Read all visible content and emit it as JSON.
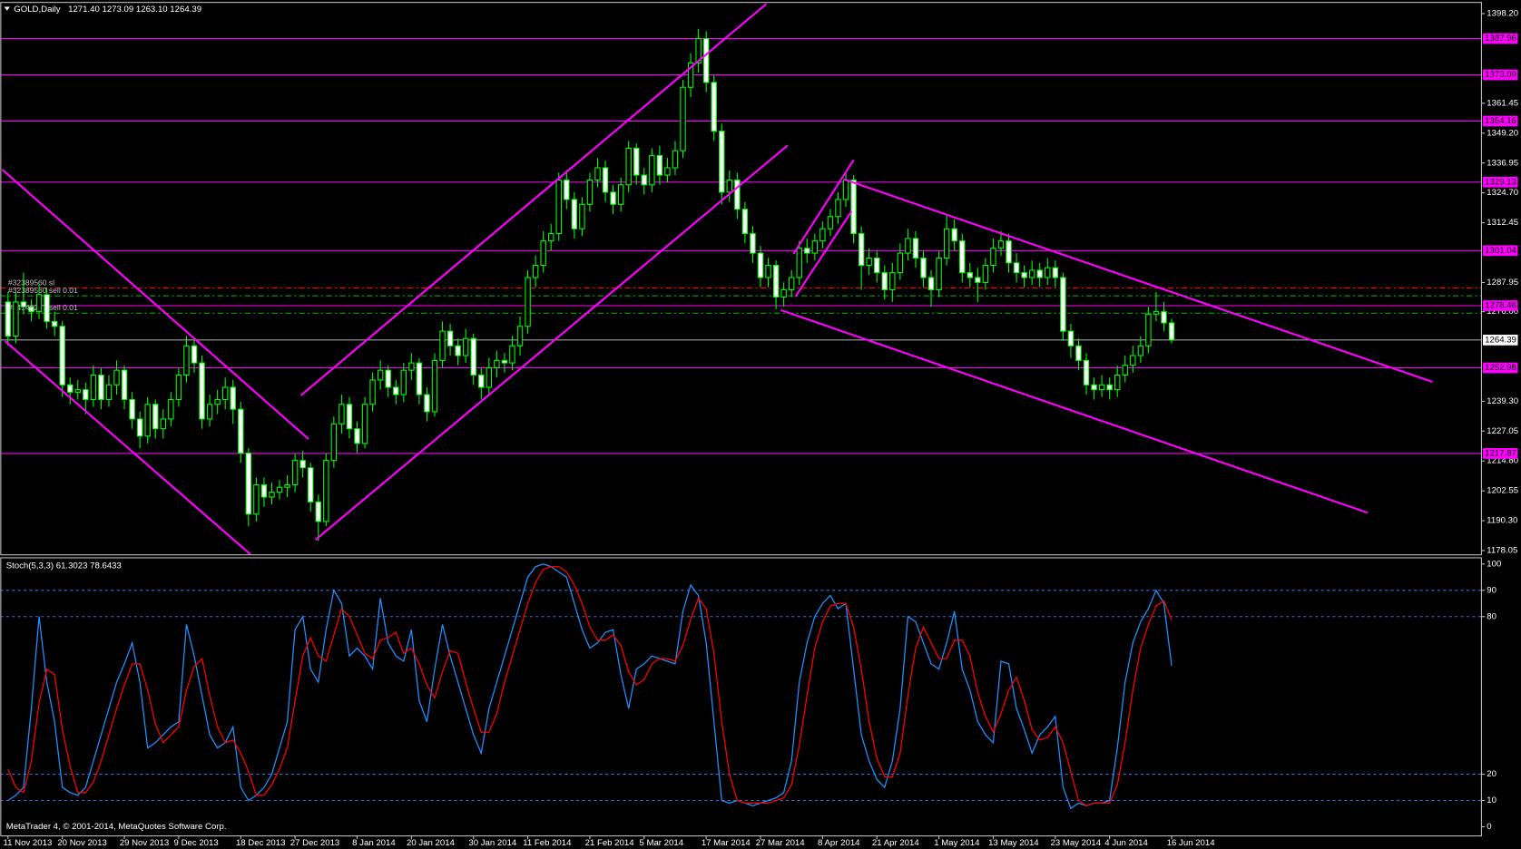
{
  "chart_data": [
    {
      "type": "candlestick",
      "title": "GOLD,Daily",
      "subtitle": "1271.40 1273.09 1263.10 1264.39",
      "categories": [
        "11 Nov 2013",
        null,
        null,
        null,
        null,
        null,
        null,
        "20 Nov 2013",
        null,
        null,
        null,
        null,
        null,
        null,
        null,
        "29 Nov 2013",
        null,
        null,
        null,
        null,
        null,
        null,
        "9 Dec 2013",
        null,
        null,
        null,
        null,
        null,
        null,
        null,
        "18 Dec 2013",
        null,
        null,
        null,
        null,
        null,
        null,
        "27 Dec 2013",
        null,
        null,
        null,
        null,
        null,
        null,
        null,
        "8 Jan 2014",
        null,
        null,
        null,
        null,
        null,
        null,
        "20 Jan 2014",
        null,
        null,
        null,
        null,
        null,
        null,
        null,
        "30 Jan 2014",
        null,
        null,
        null,
        null,
        null,
        null,
        "11 Feb 2014",
        null,
        null,
        null,
        null,
        null,
        null,
        null,
        "21 Feb 2014",
        null,
        null,
        null,
        null,
        null,
        null,
        "5 Mar 2014",
        null,
        null,
        null,
        null,
        null,
        null,
        null,
        "17 Mar 2014",
        null,
        null,
        null,
        null,
        null,
        null,
        "27 Mar 2014",
        null,
        null,
        null,
        null,
        null,
        null,
        null,
        "8 Apr 2014",
        null,
        null,
        null,
        null,
        null,
        null,
        "21 Apr 2014",
        null,
        null,
        null,
        null,
        null,
        null,
        null,
        "1 May 2014",
        null,
        null,
        null,
        null,
        null,
        null,
        "13 May 2014",
        null,
        null,
        null,
        null,
        null,
        null,
        null,
        "23 May 2014",
        null,
        null,
        null,
        null,
        null,
        null,
        "4 Jun 2014",
        null,
        null,
        null,
        null,
        null,
        null,
        null,
        "16 Jun 2014"
      ],
      "open": [
        1280,
        1266,
        1280,
        1278,
        1276,
        1283,
        1272,
        1270,
        1246,
        1243,
        1244,
        1240,
        1250,
        1240,
        1246,
        1252,
        1240,
        1232,
        1225,
        1238,
        1228,
        1232,
        1240,
        1250,
        1262,
        1255,
        1232,
        1238,
        1240,
        1245,
        1236,
        1218,
        1193,
        1205,
        1200,
        1202,
        1204,
        1205,
        1215,
        1212,
        1198,
        1190,
        1215,
        1230,
        1238,
        1228,
        1222,
        1238,
        1248,
        1252,
        1245,
        1242,
        1252,
        1255,
        1242,
        1235,
        1256,
        1268,
        1262,
        1258,
        1265,
        1250,
        1245,
        1253,
        1256,
        1255,
        1262,
        1270,
        1290,
        1295,
        1305,
        1308,
        1330,
        1322,
        1310,
        1320,
        1330,
        1335,
        1325,
        1320,
        1328,
        1343,
        1332,
        1328,
        1340,
        1332,
        1335,
        1342,
        1368,
        1378,
        1388,
        1370,
        1350,
        1325,
        1330,
        1318,
        1308,
        1300,
        1290,
        1295,
        1282,
        1285,
        1290,
        1302,
        1300,
        1305,
        1310,
        1315,
        1322,
        1330,
        1308,
        1295,
        1298,
        1292,
        1285,
        1292,
        1300,
        1306,
        1298,
        1290,
        1285,
        1298,
        1310,
        1305,
        1292,
        1290,
        1288,
        1295,
        1302,
        1305,
        1296,
        1292,
        1290,
        1293,
        1290,
        1294,
        1290,
        1268,
        1262,
        1256,
        1246,
        1244,
        1246,
        1244,
        1250,
        1254,
        1258,
        1262,
        1275,
        1276,
        1271.4
      ],
      "high": [
        1284,
        1284,
        1292,
        1281,
        1287,
        1286,
        1276,
        1272,
        1249,
        1248,
        1247,
        1254,
        1253,
        1250,
        1256,
        1254,
        1243,
        1235,
        1241,
        1240,
        1236,
        1243,
        1253,
        1266,
        1265,
        1258,
        1242,
        1244,
        1249,
        1248,
        1239,
        1220,
        1208,
        1208,
        1206,
        1207,
        1209,
        1218,
        1219,
        1214,
        1201,
        1218,
        1233,
        1242,
        1241,
        1231,
        1241,
        1251,
        1256,
        1254,
        1248,
        1255,
        1259,
        1257,
        1245,
        1259,
        1272,
        1271,
        1265,
        1269,
        1267,
        1253,
        1257,
        1260,
        1259,
        1266,
        1274,
        1293,
        1299,
        1309,
        1312,
        1333,
        1334,
        1325,
        1323,
        1333,
        1339,
        1338,
        1328,
        1331,
        1346,
        1345,
        1335,
        1343,
        1344,
        1339,
        1346,
        1371,
        1382,
        1392,
        1391,
        1373,
        1353,
        1334,
        1333,
        1321,
        1311,
        1303,
        1298,
        1297,
        1288,
        1293,
        1305,
        1306,
        1308,
        1313,
        1318,
        1325,
        1333,
        1332,
        1311,
        1302,
        1301,
        1295,
        1296,
        1304,
        1310,
        1309,
        1301,
        1293,
        1301,
        1316,
        1314,
        1308,
        1296,
        1294,
        1298,
        1306,
        1309,
        1308,
        1300,
        1295,
        1297,
        1296,
        1298,
        1297,
        1292,
        1271,
        1265,
        1259,
        1249,
        1250,
        1249,
        1254,
        1258,
        1262,
        1266,
        1278,
        1284,
        1280,
        1273.09
      ],
      "low": [
        1262,
        1263,
        1275,
        1272,
        1273,
        1269,
        1266,
        1241,
        1238,
        1240,
        1234,
        1237,
        1236,
        1237,
        1242,
        1236,
        1228,
        1220,
        1222,
        1224,
        1224,
        1229,
        1237,
        1247,
        1251,
        1228,
        1229,
        1234,
        1236,
        1230,
        1214,
        1188,
        1190,
        1196,
        1197,
        1199,
        1200,
        1202,
        1208,
        1194,
        1182,
        1188,
        1212,
        1226,
        1224,
        1218,
        1220,
        1235,
        1244,
        1241,
        1238,
        1239,
        1248,
        1238,
        1231,
        1233,
        1253,
        1258,
        1254,
        1255,
        1246,
        1240,
        1242,
        1249,
        1251,
        1252,
        1258,
        1267,
        1286,
        1292,
        1301,
        1305,
        1318,
        1306,
        1307,
        1317,
        1327,
        1321,
        1316,
        1317,
        1325,
        1328,
        1324,
        1325,
        1328,
        1329,
        1332,
        1339,
        1364,
        1374,
        1366,
        1346,
        1320,
        1321,
        1314,
        1304,
        1296,
        1286,
        1286,
        1277,
        1278,
        1282,
        1287,
        1296,
        1297,
        1302,
        1307,
        1312,
        1319,
        1304,
        1285,
        1291,
        1288,
        1281,
        1280,
        1289,
        1297,
        1294,
        1286,
        1278,
        1282,
        1295,
        1301,
        1288,
        1286,
        1280,
        1285,
        1292,
        1299,
        1292,
        1288,
        1286,
        1287,
        1286,
        1287,
        1286,
        1264,
        1257,
        1252,
        1242,
        1240,
        1241,
        1240,
        1241,
        1247,
        1251,
        1255,
        1259,
        1272,
        1268,
        1263.1
      ],
      "close": [
        1266,
        1280,
        1278,
        1276,
        1283,
        1272,
        1270,
        1246,
        1243,
        1244,
        1240,
        1250,
        1240,
        1246,
        1252,
        1240,
        1232,
        1225,
        1238,
        1228,
        1232,
        1240,
        1250,
        1262,
        1255,
        1232,
        1238,
        1240,
        1245,
        1236,
        1218,
        1193,
        1205,
        1200,
        1202,
        1204,
        1205,
        1215,
        1212,
        1198,
        1190,
        1215,
        1230,
        1238,
        1228,
        1222,
        1238,
        1248,
        1252,
        1245,
        1242,
        1252,
        1255,
        1242,
        1235,
        1256,
        1268,
        1262,
        1258,
        1265,
        1250,
        1245,
        1253,
        1256,
        1255,
        1262,
        1270,
        1290,
        1295,
        1305,
        1308,
        1330,
        1322,
        1310,
        1320,
        1330,
        1335,
        1325,
        1320,
        1328,
        1343,
        1332,
        1328,
        1340,
        1332,
        1335,
        1342,
        1368,
        1378,
        1388,
        1370,
        1350,
        1325,
        1330,
        1318,
        1308,
        1300,
        1290,
        1295,
        1282,
        1285,
        1290,
        1302,
        1300,
        1305,
        1310,
        1315,
        1322,
        1330,
        1308,
        1295,
        1298,
        1292,
        1285,
        1292,
        1300,
        1306,
        1298,
        1290,
        1285,
        1298,
        1310,
        1305,
        1292,
        1290,
        1288,
        1295,
        1302,
        1305,
        1296,
        1292,
        1290,
        1293,
        1290,
        1294,
        1290,
        1268,
        1262,
        1256,
        1246,
        1244,
        1246,
        1244,
        1250,
        1254,
        1258,
        1262,
        1275,
        1276,
        1271.4,
        1264.39
      ],
      "up_color": "#000000",
      "down_color": "#ffffff",
      "wick_color": "#00ff00",
      "ylim": [
        1176.5,
        1402.6
      ],
      "yticks": [
        {
          "value": 1398.2,
          "label": "1398.20"
        },
        1361.45,
        {
          "value": 1349.2,
          "label": "1349.20"
        },
        1336.95,
        {
          "value": 1324.7,
          "label": "1324.70"
        },
        1312.45,
        1287.95,
        {
          "value": 1276,
          "label": "1276.00"
        },
        {
          "value": 1239.3,
          "label": "1239.30"
        },
        1227.05,
        {
          "value": 1214.8,
          "label": "1214.80"
        },
        1202.55,
        {
          "value": 1190.3,
          "label": "1190.30"
        },
        1178.05
      ],
      "hlines": {
        "color": "#ff00ff",
        "values": [
          1387.96,
          1373.09,
          1354.16,
          1329.13,
          1301.04,
          1278.46,
          1252.98,
          1217.87
        ]
      },
      "last_price": 1264.39,
      "order_lines": [
        {
          "label": "#32389560 sl",
          "value": 1285.7,
          "color": "#ff0000"
        },
        {
          "label": "#32389560 sell 0.01",
          "value": 1282.5,
          "color": "#00c000"
        },
        {
          "label": "#24140277 sell 0.01",
          "value": 1275.4,
          "color": "#00c000"
        }
      ]
    },
    {
      "type": "line",
      "title": "Stoch(5,3,3) 61.3023 78.6433",
      "series": [
        {
          "color": "#1e90ff",
          "values": [
            10,
            12,
            15,
            45,
            80,
            55,
            40,
            15,
            13,
            12,
            15,
            25,
            35,
            45,
            55,
            62,
            70,
            55,
            30,
            32,
            35,
            38,
            40,
            77,
            65,
            50,
            35,
            30,
            32,
            38,
            15,
            10,
            12,
            15,
            20,
            30,
            40,
            75,
            80,
            60,
            55,
            75,
            90,
            85,
            65,
            68,
            65,
            60,
            87,
            70,
            65,
            63,
            75,
            48,
            40,
            60,
            77,
            65,
            55,
            45,
            35,
            28,
            45,
            55,
            65,
            75,
            85,
            95,
            99,
            100,
            99,
            97,
            95,
            85,
            75,
            68,
            70,
            74,
            75,
            58,
            45,
            60,
            62,
            65,
            64,
            63,
            62,
            82,
            92,
            88,
            70,
            40,
            10,
            9,
            10,
            9,
            8,
            9,
            10,
            11,
            13,
            25,
            55,
            70,
            80,
            85,
            88,
            83,
            85,
            60,
            35,
            25,
            18,
            15,
            25,
            45,
            80,
            78,
            70,
            62,
            60,
            70,
            82,
            60,
            52,
            40,
            35,
            32,
            63,
            62,
            45,
            37,
            28,
            35,
            38,
            42,
            15,
            7,
            9,
            8,
            9,
            9,
            10,
            30,
            55,
            70,
            78,
            83,
            90,
            85,
            61.3023
          ]
        },
        {
          "color": "#ff0000",
          "values": [
            22,
            15,
            13,
            25,
            47,
            60,
            58,
            37,
            23,
            13,
            13,
            17,
            25,
            35,
            45,
            54,
            62,
            62,
            52,
            39,
            32,
            35,
            38,
            52,
            61,
            64,
            50,
            38,
            32,
            33,
            28,
            21,
            12,
            12,
            16,
            22,
            30,
            48,
            65,
            72,
            65,
            63,
            73,
            83,
            80,
            73,
            66,
            64,
            71,
            72,
            74,
            66,
            68,
            62,
            54,
            49,
            59,
            67,
            66,
            55,
            45,
            36,
            36,
            43,
            55,
            65,
            75,
            85,
            93,
            98,
            99,
            99,
            97,
            92,
            85,
            76,
            71,
            71,
            73,
            69,
            59,
            54,
            56,
            62,
            64,
            64,
            63,
            69,
            79,
            87,
            83,
            66,
            40,
            20,
            10,
            9,
            9,
            9,
            9,
            10,
            11,
            16,
            31,
            50,
            68,
            78,
            84,
            85,
            85,
            76,
            60,
            40,
            26,
            19,
            19,
            28,
            50,
            68,
            76,
            70,
            64,
            64,
            71,
            71,
            65,
            51,
            42,
            36,
            43,
            52,
            57,
            48,
            37,
            33,
            34,
            38,
            32,
            21,
            10,
            8,
            9,
            9,
            9,
            16,
            32,
            52,
            68,
            77,
            84,
            86,
            78.6433
          ]
        }
      ],
      "ylim": [
        -3.3,
        102.2
      ],
      "yticks": [
        0,
        10,
        20,
        80,
        90,
        100
      ],
      "levels": [
        10,
        20,
        80,
        90
      ],
      "level_color": "#4169e1",
      "note": "MetaTrader 4, © 2001-2014, MetaQuotes Software Corp."
    }
  ]
}
